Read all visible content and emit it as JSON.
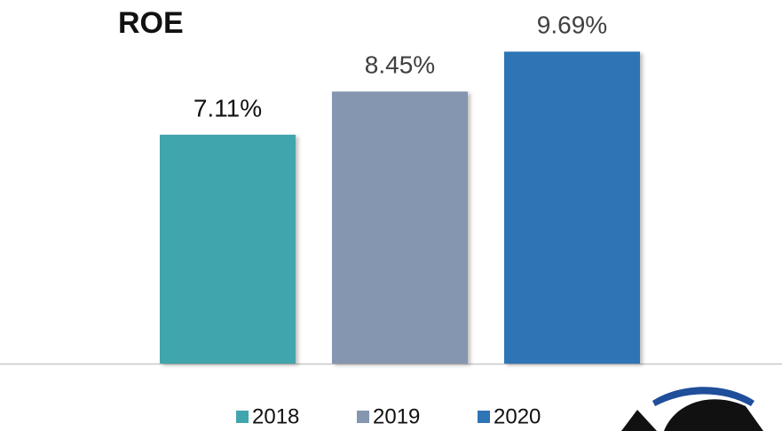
{
  "chart_data": {
    "type": "bar",
    "title": "ROE",
    "categories": [
      null
    ],
    "series": [
      {
        "name": "2018",
        "color": "#41a5ad",
        "values": [
          7.11
        ],
        "value_labels": [
          "7.11%"
        ]
      },
      {
        "name": "2019",
        "color": "#8496b0",
        "values": [
          8.45
        ],
        "value_labels": [
          "8.45%"
        ]
      },
      {
        "name": "2020",
        "color": "#2e75b6",
        "values": [
          9.69
        ],
        "value_labels": [
          "9.69%"
        ]
      }
    ],
    "ylim": [
      0,
      10
    ]
  }
}
